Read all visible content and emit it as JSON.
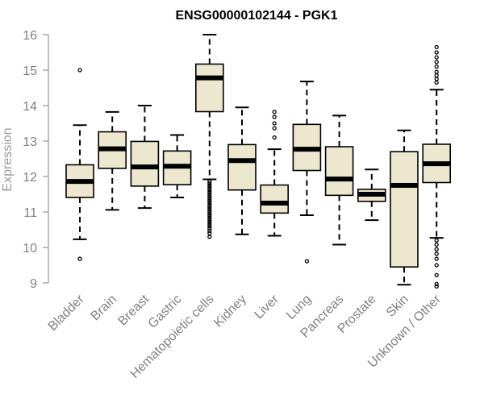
{
  "chart_data": {
    "type": "box",
    "title": "ENSG00000102144 - PGK1",
    "xlabel": "",
    "ylabel": "Expression",
    "ylim": [
      9,
      16
    ],
    "yticks": [
      9,
      10,
      11,
      12,
      13,
      14,
      15,
      16
    ],
    "grid": false,
    "box_color": "#EDE7CF",
    "stroke_color": "#000000",
    "axis_color": "#808080",
    "categories": [
      "Bladder",
      "Brain",
      "Breast",
      "Gastric",
      "Hematopoietic cells",
      "Kidney",
      "Liver",
      "Lung",
      "Pancreas",
      "Prostate",
      "Skin",
      "Unknown / Other"
    ],
    "boxes": [
      {
        "label": "Bladder",
        "whisker_low": 10.23,
        "q1": 11.41,
        "median": 11.86,
        "q3": 12.33,
        "whisker_high": 13.45,
        "outliers": [
          15.0,
          9.68
        ]
      },
      {
        "label": "Brain",
        "whisker_low": 11.06,
        "q1": 12.23,
        "median": 12.78,
        "q3": 13.26,
        "whisker_high": 13.82,
        "outliers": []
      },
      {
        "label": "Breast",
        "whisker_low": 11.11,
        "q1": 11.73,
        "median": 12.27,
        "q3": 12.99,
        "whisker_high": 14.0,
        "outliers": []
      },
      {
        "label": "Gastric",
        "whisker_low": 11.41,
        "q1": 11.77,
        "median": 12.29,
        "q3": 12.72,
        "whisker_high": 13.17,
        "outliers": []
      },
      {
        "label": "Hematopoietic cells",
        "whisker_low": 11.92,
        "q1": 13.83,
        "median": 14.78,
        "q3": 15.17,
        "whisker_high": 16.0,
        "outliers": [
          11.86,
          11.8,
          11.74,
          11.68,
          11.62,
          11.56,
          11.5,
          11.44,
          11.38,
          11.32,
          11.26,
          11.2,
          11.14,
          11.08,
          11.02,
          10.96,
          10.9,
          10.84,
          10.78,
          10.72,
          10.66,
          10.6,
          10.54,
          10.47,
          10.4,
          10.3
        ]
      },
      {
        "label": "Kidney",
        "whisker_low": 10.37,
        "q1": 11.62,
        "median": 12.45,
        "q3": 12.9,
        "whisker_high": 13.95,
        "outliers": []
      },
      {
        "label": "Liver",
        "whisker_low": 10.33,
        "q1": 10.97,
        "median": 11.25,
        "q3": 11.76,
        "whisker_high": 12.77,
        "outliers": [
          13.82,
          13.68,
          13.5,
          13.36,
          13.1
        ]
      },
      {
        "label": "Lung",
        "whisker_low": 10.91,
        "q1": 12.17,
        "median": 12.77,
        "q3": 13.47,
        "whisker_high": 14.68,
        "outliers": [
          9.61
        ]
      },
      {
        "label": "Pancreas",
        "whisker_low": 10.08,
        "q1": 11.47,
        "median": 11.93,
        "q3": 12.84,
        "whisker_high": 13.72,
        "outliers": []
      },
      {
        "label": "Prostate",
        "whisker_low": 10.77,
        "q1": 11.3,
        "median": 11.5,
        "q3": 11.64,
        "whisker_high": 12.2,
        "outliers": []
      },
      {
        "label": "Skin",
        "whisker_low": 8.95,
        "q1": 9.45,
        "median": 11.75,
        "q3": 12.7,
        "whisker_high": 13.3,
        "outliers": []
      },
      {
        "label": "Unknown / Other",
        "whisker_low": 10.27,
        "q1": 11.83,
        "median": 12.36,
        "q3": 12.91,
        "whisker_high": 14.45,
        "outliers": [
          15.65,
          15.5,
          15.36,
          15.23,
          15.1,
          14.95,
          14.85,
          14.75,
          14.65,
          10.2,
          10.08,
          9.95,
          9.82,
          9.68,
          9.5,
          9.22,
          8.97,
          8.9
        ]
      }
    ]
  }
}
